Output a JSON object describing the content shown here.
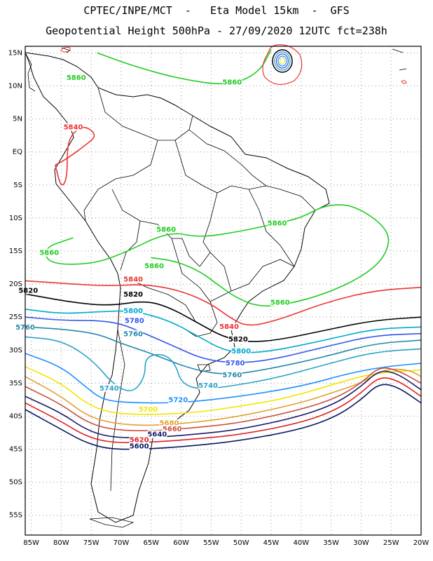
{
  "header": {
    "title_line1": "CPTEC/INPE/MCT  -   Eta Model 15km  -  GFS",
    "title_line2": "Geopotential Height 500hPa - 27/09/2020 12UTC fct=238h"
  },
  "chart_data": {
    "type": "contour_map",
    "title": "CPTEC/INPE/MCT - Eta Model 15km - GFS",
    "subtitle": "Geopotential Height 500hPa - 27/09/2020 12UTC fct=238h",
    "x_ticks": [
      "85W",
      "80W",
      "75W",
      "70W",
      "65W",
      "60W",
      "55W",
      "50W",
      "45W",
      "40W",
      "35W",
      "30W",
      "25W",
      "20W"
    ],
    "y_ticks": [
      "15N",
      "10N",
      "5N",
      "EQ",
      "5S",
      "10S",
      "15S",
      "20S",
      "25S",
      "30S",
      "35S",
      "40S",
      "45S",
      "50S",
      "55S"
    ],
    "lon_range": [
      -86,
      -20
    ],
    "lat_range": [
      16,
      -58
    ],
    "grid": true,
    "contours": [
      {
        "level": 5860,
        "color": "#22cc22",
        "label": "5860",
        "points": [
          [
            -74,
            15
          ],
          [
            -68,
            13
          ],
          [
            -60,
            11
          ],
          [
            -52,
            10
          ],
          [
            -47,
            12
          ],
          [
            -45,
            15.5
          ]
        ],
        "label_at": [
          [
            -77.5,
            11
          ],
          [
            -51.5,
            10.3
          ]
        ]
      },
      {
        "level": 5860,
        "color": "#22cc22",
        "label": "5860",
        "points": [
          [
            -78,
            -13
          ],
          [
            -83,
            -14.5
          ],
          [
            -82,
            -17
          ],
          [
            -75,
            -17
          ],
          [
            -70,
            -15.5
          ],
          [
            -62,
            -12
          ],
          [
            -57,
            -13
          ],
          [
            -50,
            -12
          ],
          [
            -45,
            -11
          ],
          [
            -40,
            -10
          ],
          [
            -36,
            -8
          ],
          [
            -31,
            -8
          ],
          [
            -25,
            -12
          ],
          [
            -26,
            -16
          ],
          [
            -30,
            -19
          ],
          [
            -36,
            -21.5
          ],
          [
            -42,
            -23
          ],
          [
            -47,
            -23.5
          ],
          [
            -51,
            -22
          ],
          [
            -54,
            -20
          ],
          [
            -57,
            -18
          ],
          [
            -61,
            -16.5
          ],
          [
            -65,
            -16
          ]
        ],
        "label_at": [
          [
            -82,
            -15.5
          ],
          [
            -62.5,
            -12
          ],
          [
            -44,
            -11
          ],
          [
            -64.5,
            -17.5
          ],
          [
            -43.5,
            -23
          ]
        ]
      },
      {
        "level": 5840,
        "color": "#ee3333",
        "label": "5840",
        "points": [
          [
            -81,
            -2
          ],
          [
            -79,
            -1
          ],
          [
            -76,
            1
          ],
          [
            -74,
            2.5
          ],
          [
            -76,
            4
          ],
          [
            -78,
            3
          ],
          [
            -79,
            1
          ],
          [
            -79,
            -4
          ],
          [
            -80,
            -5.5
          ],
          [
            -81,
            -2
          ]
        ],
        "label_at": [
          [
            -78,
            3.5
          ]
        ]
      },
      {
        "level": 5840,
        "color": "#ee3333",
        "label": "5840",
        "points": [
          [
            -86,
            -19.5
          ],
          [
            -78,
            -20
          ],
          [
            -72,
            -20.3
          ],
          [
            -66,
            -20
          ],
          [
            -60,
            -21
          ],
          [
            -55,
            -23
          ],
          [
            -52,
            -25
          ],
          [
            -49,
            -26.5
          ],
          [
            -44,
            -25.5
          ],
          [
            -36,
            -22.8
          ],
          [
            -28,
            -21
          ],
          [
            -20,
            -20.5
          ]
        ],
        "label_at": [
          [
            -68,
            -19.5
          ],
          [
            -52,
            -26.7
          ]
        ]
      },
      {
        "level": 5820,
        "color": "#000000",
        "label": "5820",
        "points": [
          [
            -86,
            -21.5
          ],
          [
            -78,
            -22.8
          ],
          [
            -72,
            -23.3
          ],
          [
            -66,
            -22.5
          ],
          [
            -62,
            -23.5
          ],
          [
            -57,
            -26
          ],
          [
            -53,
            -28
          ],
          [
            -49,
            -28.8
          ],
          [
            -44,
            -28.5
          ],
          [
            -36,
            -27
          ],
          [
            -28,
            -25.5
          ],
          [
            -20,
            -25
          ]
        ],
        "label_at": [
          [
            -85.5,
            -21.2
          ],
          [
            -68,
            -21.8
          ],
          [
            -50.5,
            -28.6
          ]
        ]
      },
      {
        "level": 5800,
        "color": "#00aacc",
        "label": "5800",
        "points": [
          [
            -86,
            -23.8
          ],
          [
            -80,
            -24.5
          ],
          [
            -74,
            -24.2
          ],
          [
            -68,
            -24
          ],
          [
            -62,
            -25.5
          ],
          [
            -57,
            -28
          ],
          [
            -53,
            -30
          ],
          [
            -49,
            -30.5
          ],
          [
            -44,
            -30
          ],
          [
            -36,
            -28.5
          ],
          [
            -28,
            -26.8
          ],
          [
            -20,
            -26.5
          ]
        ],
        "label_at": [
          [
            -68,
            -24.3
          ],
          [
            -50,
            -30.4
          ]
        ]
      },
      {
        "level": 5780,
        "color": "#3355ee",
        "label": "5780",
        "points": [
          [
            -86,
            -25
          ],
          [
            -80,
            -25.5
          ],
          [
            -74,
            -25.5
          ],
          [
            -70,
            -26
          ],
          [
            -66,
            -27.5
          ],
          [
            -61,
            -29.5
          ],
          [
            -56,
            -31.5
          ],
          [
            -50,
            -32
          ],
          [
            -44,
            -31.3
          ],
          [
            -36,
            -29.5
          ],
          [
            -28,
            -27.8
          ],
          [
            -20,
            -27.5
          ]
        ],
        "label_at": [
          [
            -67.8,
            -25.8
          ],
          [
            -51,
            -32.2
          ]
        ]
      },
      {
        "level": 5760,
        "color": "#2288aa",
        "label": "5760",
        "points": [
          [
            -86,
            -26.5
          ],
          [
            -80,
            -26.8
          ],
          [
            -74,
            -27.5
          ],
          [
            -70,
            -29
          ],
          [
            -65,
            -30.5
          ],
          [
            -58,
            -33
          ],
          [
            -52,
            -33.8
          ],
          [
            -45,
            -32.8
          ],
          [
            -36,
            -31
          ],
          [
            -28,
            -29
          ],
          [
            -20,
            -28.5
          ]
        ],
        "label_at": [
          [
            -86,
            -26.8
          ],
          [
            -68,
            -27.8
          ],
          [
            -51.5,
            -34
          ]
        ]
      },
      {
        "level": 5740,
        "color": "#2ba3c6",
        "label": "5740",
        "points": [
          [
            -86,
            -28
          ],
          [
            -80,
            -28.5
          ],
          [
            -75,
            -31.3
          ],
          [
            -71,
            -35.5
          ],
          [
            -68,
            -36.5
          ],
          [
            -66,
            -34
          ],
          [
            -66,
            -31
          ],
          [
            -63,
            -30.5
          ],
          [
            -61,
            -32
          ],
          [
            -60,
            -35
          ],
          [
            -57,
            -36
          ],
          [
            -52,
            -35.5
          ],
          [
            -44,
            -34.2
          ],
          [
            -36,
            -32.2
          ],
          [
            -28,
            -30.3
          ],
          [
            -20,
            -29.8
          ]
        ],
        "label_at": [
          [
            -72,
            -36
          ],
          [
            -55.5,
            -35.6
          ]
        ]
      },
      {
        "level": 5720,
        "color": "#1e90ff",
        "label": "5720",
        "points": [
          [
            -86,
            -30.5
          ],
          [
            -80,
            -32.5
          ],
          [
            -76,
            -35.5
          ],
          [
            -73,
            -37.6
          ],
          [
            -68,
            -38
          ],
          [
            -60,
            -38
          ],
          [
            -50,
            -37
          ],
          [
            -40,
            -35.5
          ],
          [
            -32,
            -33.5
          ],
          [
            -26,
            -32.5
          ],
          [
            -20,
            -32
          ]
        ],
        "label_at": [
          [
            -60.5,
            -37.8
          ]
        ]
      },
      {
        "level": 5700,
        "color": "#f2e600",
        "label": "5700",
        "points": [
          [
            -86,
            -32.5
          ],
          [
            -80,
            -35
          ],
          [
            -76,
            -38
          ],
          [
            -72,
            -39.5
          ],
          [
            -66,
            -39.8
          ],
          [
            -58,
            -39.5
          ],
          [
            -50,
            -38.5
          ],
          [
            -42,
            -37.2
          ],
          [
            -34,
            -35
          ],
          [
            -28,
            -33.5
          ],
          [
            -20,
            -33
          ]
        ],
        "label_at": [
          [
            -65.5,
            -39.2
          ]
        ]
      },
      {
        "level": 5680,
        "color": "#e0a030",
        "label": "5680",
        "points": [
          [
            -86,
            -34
          ],
          [
            -80,
            -37
          ],
          [
            -76,
            -39.8
          ],
          [
            -72,
            -41
          ],
          [
            -66,
            -41.5
          ],
          [
            -58,
            -41
          ],
          [
            -50,
            -40
          ],
          [
            -40,
            -38
          ],
          [
            -34,
            -36.2
          ],
          [
            -30,
            -35
          ],
          [
            -26,
            -32.8
          ],
          [
            -22,
            -33
          ],
          [
            -20,
            -34
          ]
        ],
        "label_at": [
          [
            -62,
            -41.3
          ]
        ]
      },
      {
        "level": 5660,
        "color": "#c95040",
        "label": "5660",
        "points": [
          [
            -86,
            -35.5
          ],
          [
            -80,
            -38.2
          ],
          [
            -76,
            -40.8
          ],
          [
            -72,
            -42
          ],
          [
            -66,
            -42.3
          ],
          [
            -58,
            -41.8
          ],
          [
            -50,
            -41
          ],
          [
            -40,
            -39
          ],
          [
            -34,
            -37.2
          ],
          [
            -30,
            -35
          ],
          [
            -27,
            -32.5
          ],
          [
            -24,
            -33
          ],
          [
            -20,
            -35
          ]
        ],
        "label_at": [
          [
            -61.5,
            -42.2
          ]
        ]
      },
      {
        "level": 5640,
        "color": "#1a1a6a",
        "label": "5640",
        "points": [
          [
            -86,
            -37
          ],
          [
            -80,
            -39.5
          ],
          [
            -76,
            -42
          ],
          [
            -72,
            -43.2
          ],
          [
            -66,
            -43.3
          ],
          [
            -58,
            -42.8
          ],
          [
            -50,
            -42
          ],
          [
            -40,
            -40
          ],
          [
            -34,
            -38
          ],
          [
            -30,
            -35.5
          ],
          [
            -27,
            -33
          ],
          [
            -24,
            -33.5
          ],
          [
            -20,
            -36
          ]
        ],
        "label_at": [
          [
            -64,
            -43
          ]
        ]
      },
      {
        "level": 5620,
        "color": "#dd2222",
        "label": "5620",
        "points": [
          [
            -86,
            -38
          ],
          [
            -80,
            -40.8
          ],
          [
            -76,
            -43
          ],
          [
            -72,
            -44
          ],
          [
            -66,
            -44
          ],
          [
            -58,
            -43.5
          ],
          [
            -50,
            -42.8
          ],
          [
            -40,
            -41
          ],
          [
            -34,
            -39
          ],
          [
            -30,
            -36.5
          ],
          [
            -27,
            -34
          ],
          [
            -24,
            -34.5
          ],
          [
            -20,
            -37
          ]
        ],
        "label_at": [
          [
            -67,
            -43.8
          ]
        ]
      },
      {
        "level": 5600,
        "color": "#0a1a60",
        "label": "5600",
        "points": [
          [
            -86,
            -39
          ],
          [
            -80,
            -42
          ],
          [
            -76,
            -44
          ],
          [
            -72,
            -45
          ],
          [
            -66,
            -45
          ],
          [
            -58,
            -44.5
          ],
          [
            -50,
            -43.7
          ],
          [
            -40,
            -42
          ],
          [
            -34,
            -40
          ],
          [
            -30,
            -37.5
          ],
          [
            -27,
            -35
          ],
          [
            -24,
            -35.5
          ],
          [
            -20,
            -38
          ]
        ],
        "label_at": [
          [
            -67,
            -44.8
          ]
        ]
      }
    ]
  }
}
